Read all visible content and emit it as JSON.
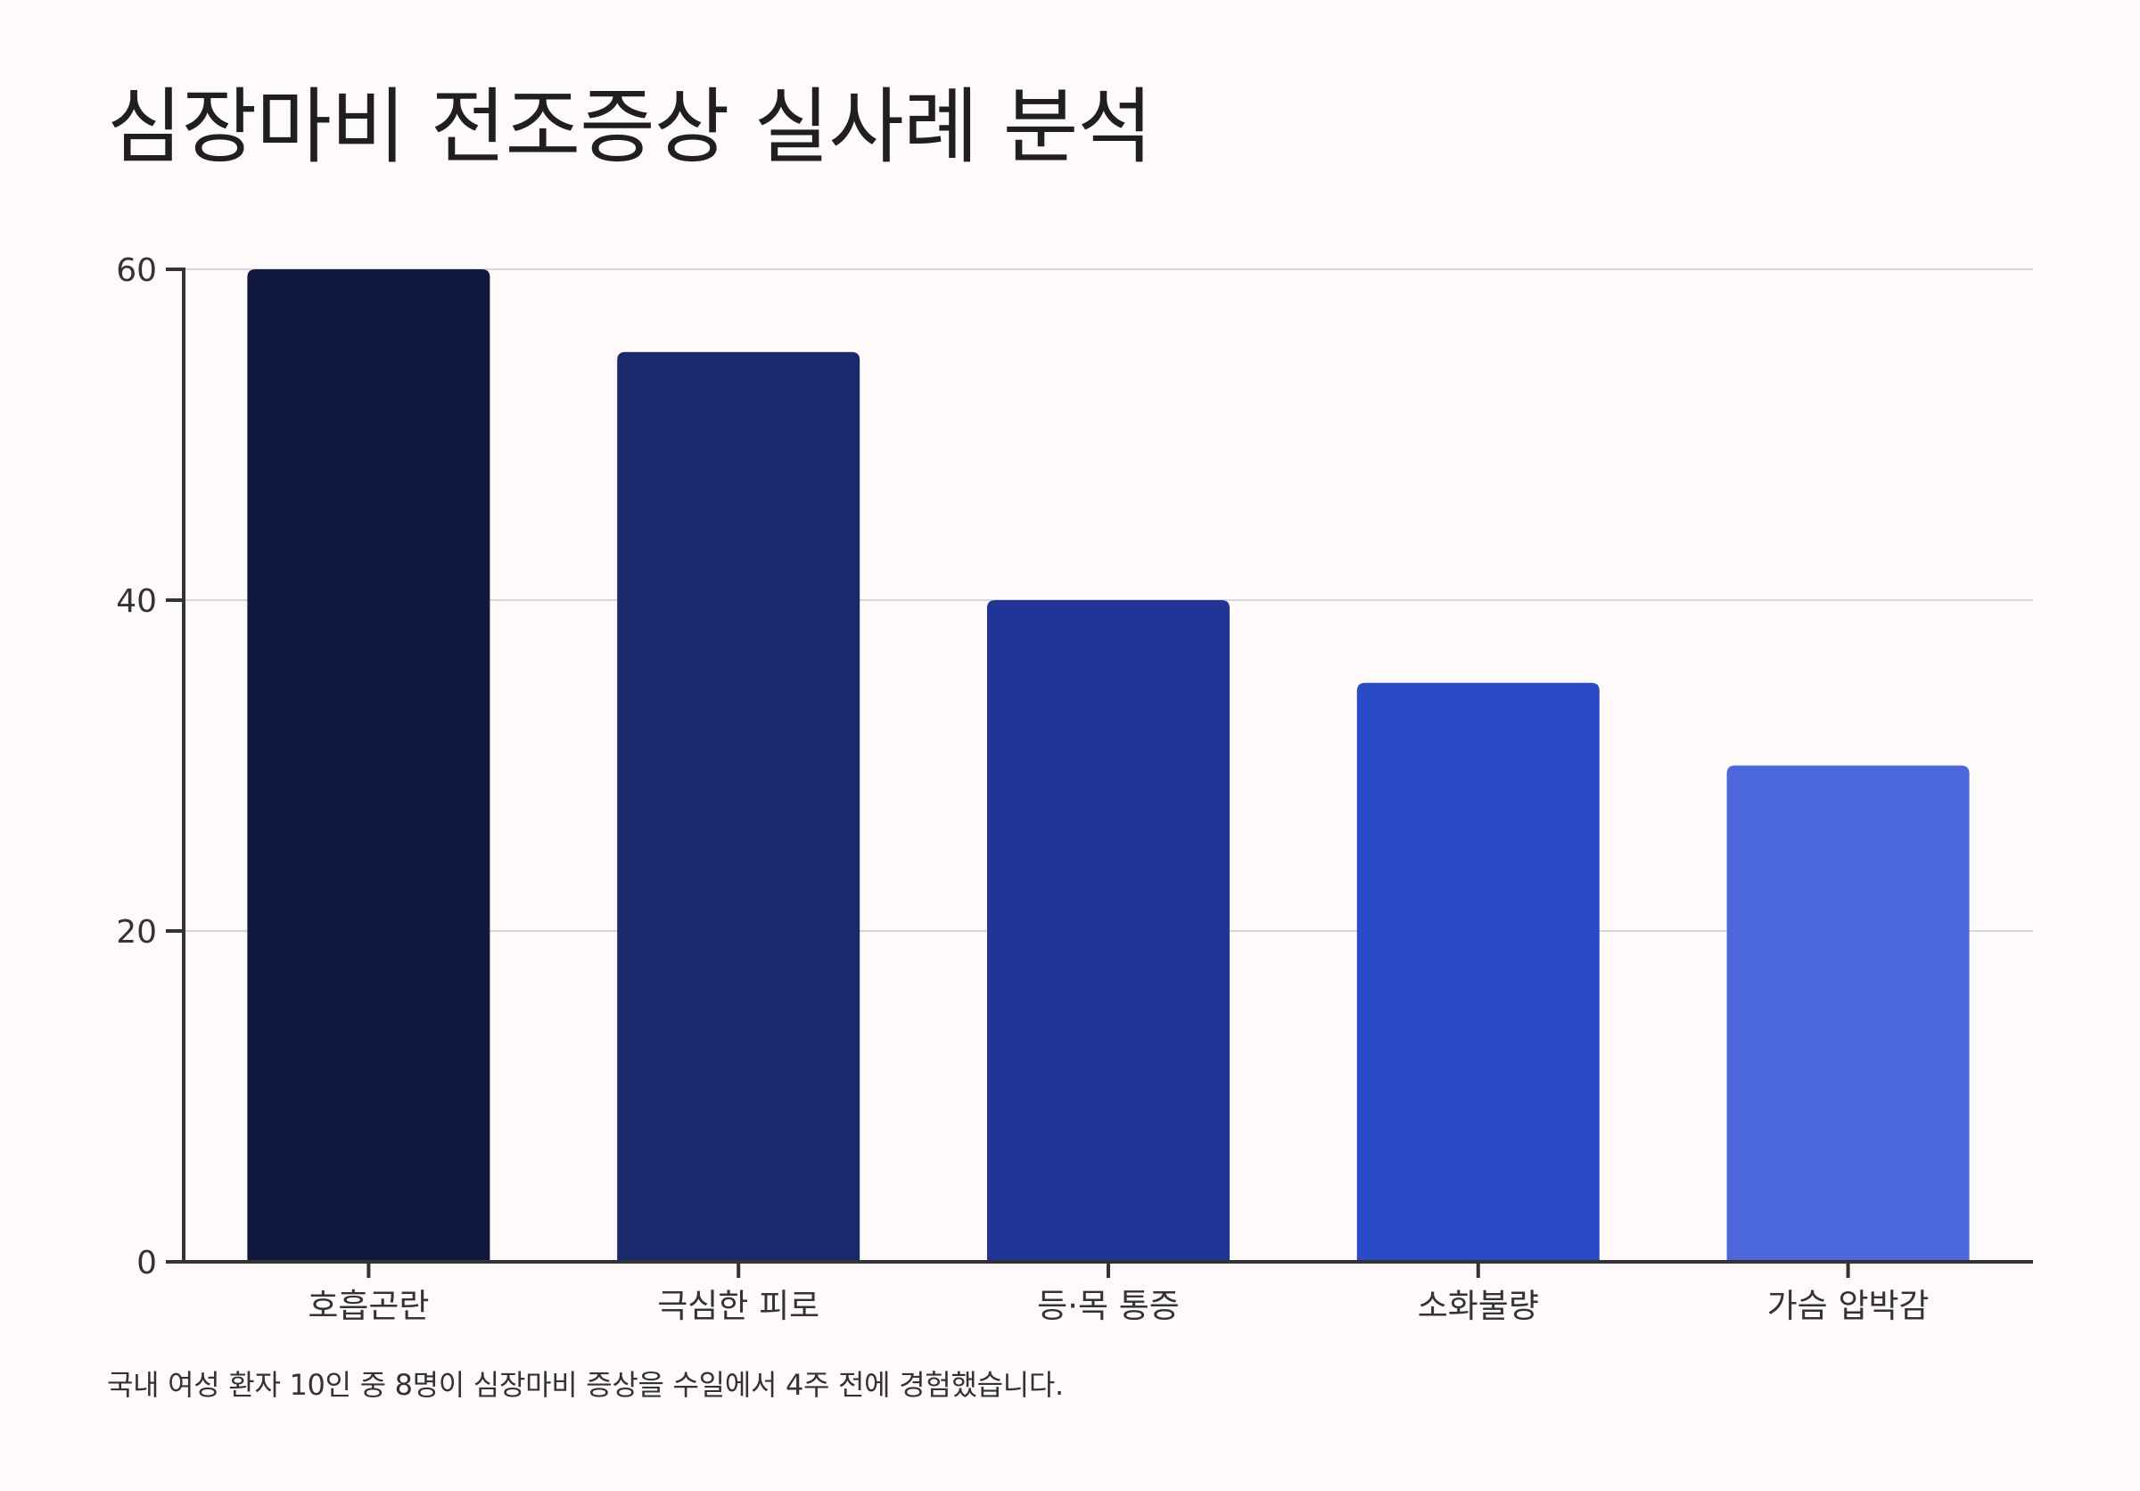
{
  "title": "심장마비 전조증상 실사례 분석",
  "caption": "국내 여성 환자 10인 중 8명이 심장마비 증상을 수일에서 4주 전에 경험했습니다.",
  "chart_data": {
    "type": "bar",
    "title": "심장마비 전조증상 실사례 분석",
    "categories": [
      "호흡곤란",
      "극심한 피로",
      "등·목 통증",
      "소화불량",
      "가슴 압박감"
    ],
    "values": [
      60,
      55,
      40,
      35,
      30
    ],
    "ylim": [
      0,
      60
    ],
    "yticks": [
      0,
      20,
      40,
      60
    ],
    "xlabel": "",
    "ylabel": "",
    "grid": "horizontal",
    "legend": "none",
    "colors": [
      "#10183f",
      "#1a286c",
      "#203596",
      "#2a4ac7",
      "#4b67db"
    ],
    "axis_color": "#333333",
    "grid_color": "#d6d6d6"
  }
}
